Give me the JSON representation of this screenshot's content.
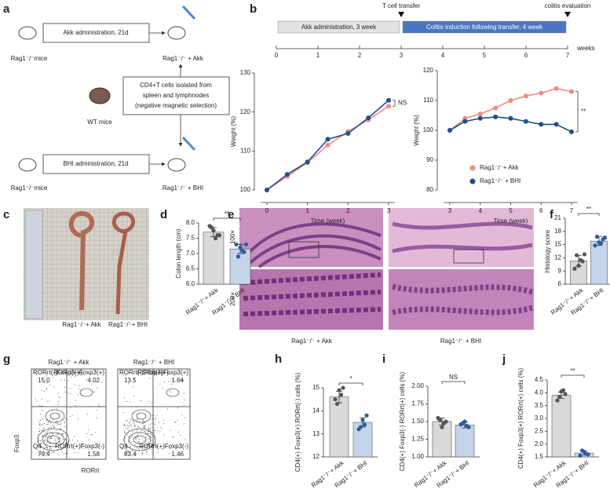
{
  "panel_labels": [
    "a",
    "b",
    "c",
    "d",
    "e",
    "f",
    "g",
    "h",
    "i",
    "j"
  ],
  "schematic": {
    "akk_box": "Akk administration, 21d",
    "bhi_box": "BHI administration, 21d",
    "center_box": [
      "CD4+T cells isolated from",
      "spleen and  lymphnodes",
      "(negative magnetic selection)"
    ],
    "mice": [
      "Rag1⁻/⁻mice",
      "Rag1⁻/⁻ + Akk",
      "WT mice",
      "Rag1⁻/⁻mice",
      "Rag1⁻/⁻ + BHI"
    ]
  },
  "timeline": {
    "xlim": [
      0,
      7
    ],
    "xticks": [
      0,
      1,
      2,
      3,
      4,
      5,
      6,
      7
    ],
    "unit": "weeks",
    "phases": [
      {
        "label": "Akk administration, 3 week",
        "start": 0,
        "end": 3,
        "color": "#e2e2e2"
      },
      {
        "label": "Colitis induction following transfer, 4 week",
        "start": 3,
        "end": 7,
        "color": "#4a76c2"
      }
    ],
    "events": [
      {
        "label": "T cell transfer",
        "at": 3
      },
      {
        "label": "colitis evaluation",
        "at": 7
      }
    ]
  },
  "chart_data": [
    {
      "type": "line",
      "xlabel": "Time (week)",
      "ylabel": "Weight (%)",
      "annotation": "NS",
      "x": [
        0,
        0.5,
        1,
        1.5,
        2,
        2.5,
        3
      ],
      "xlim": [
        0,
        3
      ],
      "xticks": [
        0,
        1,
        2,
        3
      ],
      "ylim": [
        100,
        130
      ],
      "yticks": [
        100,
        110,
        120,
        130
      ],
      "series": [
        {
          "color": "#f08a80",
          "values": [
            100,
            103.5,
            107,
            111.5,
            115,
            118,
            121.5
          ]
        },
        {
          "color": "#1f4e8c",
          "values": [
            100,
            104,
            107.2,
            113,
            114.5,
            118.5,
            123
          ]
        }
      ]
    },
    {
      "type": "line",
      "xlabel": "Time (week)",
      "ylabel": "Weight (%)",
      "annotation": "**",
      "x": [
        3,
        3.5,
        4,
        4.5,
        5,
        5.5,
        6,
        6.5,
        7
      ],
      "xlim": [
        3,
        7
      ],
      "xticks": [
        3,
        4,
        5,
        6,
        7
      ],
      "ylim": [
        80,
        120
      ],
      "yticks": [
        80,
        90,
        100,
        110,
        120
      ],
      "series": [
        {
          "name": "Rag1⁻/⁻+ Akk",
          "color": "#f08a80",
          "values": [
            100,
            104,
            105.5,
            107.5,
            110,
            111.5,
            112.5,
            114,
            113
          ]
        },
        {
          "name": "Rag1⁻/⁻ + BHI",
          "color": "#1f4e8c",
          "values": [
            100,
            103,
            104,
            104.5,
            104,
            103,
            102,
            102,
            99.5
          ]
        }
      ]
    },
    {
      "type": "bar",
      "ylabel": "Colon length (cm)",
      "annotation": "**",
      "categories": [
        "Rag1⁻/⁻+ Akk",
        "Rag1⁻/⁻+ BHI"
      ],
      "values": [
        7.7,
        7.15
      ],
      "errors": [
        0.15,
        0.15
      ],
      "points": [
        [
          7.9,
          7.75,
          7.6,
          7.85,
          7.5,
          7.6
        ],
        [
          7.3,
          7.2,
          7.05,
          6.9,
          7.1,
          7.3
        ]
      ],
      "colors": [
        "#d9d9d9",
        "#c6d4ea"
      ],
      "point_colors": [
        "#555555",
        "#2f5d9e"
      ],
      "ylim": [
        6,
        8
      ],
      "yticks": [
        {
          "value": 6,
          "label": "6.0"
        },
        6.5,
        {
          "value": 7,
          "label": "7.0"
        },
        7.5,
        {
          "value": 8,
          "label": "8.0"
        }
      ]
    },
    {
      "type": "bar",
      "ylabel": "Histology score",
      "annotation": "**",
      "categories": [
        "Rag1⁻/⁻+ Akk",
        "Rag1⁻/⁻+ BHI"
      ],
      "values": [
        11.3,
        15.8
      ],
      "errors": [
        1.2,
        1.0
      ],
      "points": [
        [
          9.5,
          10.2,
          11.2,
          12.6,
          11.5,
          12.8
        ],
        [
          14.8,
          15.5,
          16.2,
          16.8,
          15.3,
          16.6
        ]
      ],
      "colors": [
        "#d9d9d9",
        "#c6d4ea"
      ],
      "point_colors": [
        "#555555",
        "#2f5d9e"
      ],
      "ylim": [
        6,
        21
      ],
      "yticks": [
        6,
        9,
        12,
        15,
        18,
        21
      ]
    },
    {
      "type": "bar",
      "ylabel": "CD4(+) Foxp3(+) RORrt(-) cells (%)",
      "annotation": "*",
      "categories": [
        "Rag1⁻/⁻+ Akk",
        "Rag1⁻/⁻+ BHI"
      ],
      "values": [
        14.6,
        13.5
      ],
      "errors": [
        0.25,
        0.2
      ],
      "points": [
        [
          14.5,
          14.9,
          15.0,
          14.3,
          14.7
        ],
        [
          13.2,
          13.6,
          13.8,
          13.3,
          13.4
        ]
      ],
      "colors": [
        "#d9d9d9",
        "#c6d4ea"
      ],
      "point_colors": [
        "#555555",
        "#2f5d9e"
      ],
      "ylim": [
        12,
        15
      ],
      "yticks": [
        12,
        13,
        14,
        15
      ]
    },
    {
      "type": "bar",
      "ylabel": "CD4(+) Foxp3(-) RORrt(+) cells (%)",
      "annotation": "NS",
      "categories": [
        "Rag1⁻/⁻+ Akk",
        "Rag1⁻/⁻+ BHI"
      ],
      "values": [
        1.5,
        1.45
      ],
      "errors": [
        0.05,
        0.04
      ],
      "points": [
        [
          1.55,
          1.42,
          1.5,
          1.52,
          1.48
        ],
        [
          1.46,
          1.5,
          1.42,
          1.48,
          1.44
        ]
      ],
      "colors": [
        "#d9d9d9",
        "#c6d4ea"
      ],
      "point_colors": [
        "#555555",
        "#2f5d9e"
      ],
      "ylim": [
        1,
        2
      ],
      "yticks": [
        {
          "value": 1,
          "label": "1.00"
        },
        1.25,
        {
          "value": 1.5,
          "label": "1.50"
        },
        1.75,
        {
          "value": 2,
          "label": "2.00"
        }
      ]
    },
    {
      "type": "bar",
      "ylabel": "CD4(+) Foxp3(+) RORrt(+) cells (%)",
      "annotation": "**",
      "categories": [
        "Rag1⁻/⁻+ Akk",
        "Rag1⁻/⁻+ BHI"
      ],
      "values": [
        3.9,
        1.65
      ],
      "errors": [
        0.12,
        0.08
      ],
      "points": [
        [
          3.7,
          4.05,
          3.95,
          3.85,
          4.1
        ],
        [
          1.55,
          1.7,
          1.6,
          1.75,
          1.62
        ]
      ],
      "colors": [
        "#d9d9d9",
        "#c6d4ea"
      ],
      "point_colors": [
        "#555555",
        "#2f5d9e"
      ],
      "ylim": [
        1.5,
        4.5
      ],
      "yticks": [
        1.5,
        {
          "value": 2,
          "label": "2.0"
        },
        2.5,
        {
          "value": 3,
          "label": "3.0"
        },
        3.5,
        {
          "value": 4,
          "label": "4.0"
        },
        4.5
      ]
    }
  ],
  "colon_photo": {
    "labels": [
      "Rag1⁻/⁻+ Akk",
      "Rag1⁻/⁻+ BHI"
    ]
  },
  "histology": {
    "magnifications": [
      "100×",
      "200×"
    ],
    "labels": [
      "Rag1⁻/⁻ + Akk",
      "Rag1⁻/⁻ + BHI"
    ]
  },
  "flow": {
    "y_label": "Foxp3",
    "x_label": "RORrt",
    "plots": [
      {
        "title": "Rag1⁻/⁻ + Akk",
        "quadrants": [
          {
            "name": "RORrt(-)Foxp3(+)",
            "value": "15.0"
          },
          {
            "name": "RORrt(+)Foxp3(+)",
            "value": "4.02"
          },
          {
            "name": "Q4",
            "value": "79.4"
          },
          {
            "name": "RORrt(+)Foxp3(-)",
            "value": "1.58"
          }
        ]
      },
      {
        "title": "Rag1⁻/⁻ + BHI",
        "quadrants": [
          {
            "name": "RORrt(-)Foxp3(+)",
            "value": "13.5"
          },
          {
            "name": "RORrt(+)Foxp3(+)",
            "value": "1.64"
          },
          {
            "name": "Q4",
            "value": "83.4"
          },
          {
            "name": "RORrt(+)Foxp3(-)",
            "value": "1.46"
          }
        ]
      }
    ]
  }
}
